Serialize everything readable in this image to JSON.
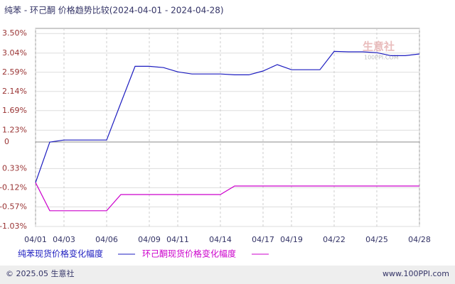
{
  "chart_data": {
    "type": "line",
    "title": "纯苯 - 环己酮 价格趋势比较(2024-04-01 - 2024-04-28)",
    "watermark": "生意社",
    "watermark_sub": "100PPI.COM",
    "zero_label": "0",
    "categories": [
      "04/01",
      null,
      "04/03",
      null,
      null,
      "04/06",
      null,
      null,
      "04/09",
      null,
      "04/11",
      null,
      null,
      "04/14",
      null,
      null,
      "04/17",
      null,
      "04/19",
      null,
      null,
      "04/22",
      null,
      null,
      "04/25",
      null,
      null,
      "04/28"
    ],
    "series": [
      {
        "name": "纯苯现货价格变化幅度",
        "color": "#1c1cc0",
        "values": [
          0,
          0.95,
          1.0,
          1.0,
          1.0,
          1.0,
          1.87,
          2.73,
          2.73,
          2.7,
          2.6,
          2.55,
          2.55,
          2.55,
          2.53,
          2.53,
          2.62,
          2.77,
          2.65,
          2.65,
          2.65,
          3.08,
          3.07,
          3.07,
          3.05,
          2.98,
          2.98,
          3.02
        ]
      },
      {
        "name": "环己酮现货价格变化幅度",
        "color": "#cc00cc",
        "values": [
          0,
          -0.66,
          -0.66,
          -0.66,
          -0.66,
          -0.66,
          -0.28,
          -0.28,
          -0.28,
          -0.28,
          -0.28,
          -0.28,
          -0.28,
          -0.28,
          -0.08,
          -0.08,
          -0.08,
          -0.08,
          -0.08,
          -0.08,
          -0.08,
          -0.08,
          -0.08,
          -0.08,
          -0.08,
          -0.08,
          -0.08,
          -0.08
        ]
      }
    ],
    "ylim": [
      -1.03,
      3.62
    ],
    "yticks": [
      {
        "value": 3.5,
        "label": "3.50%"
      },
      {
        "value": 3.04,
        "label": "3.04%"
      },
      {
        "value": 2.59,
        "label": "2.59%"
      },
      {
        "value": 2.14,
        "label": "2.14%"
      },
      {
        "value": 1.69,
        "label": "1.69%"
      },
      {
        "value": 1.23,
        "label": "1.23%"
      },
      {
        "value": 0.33,
        "label": "0.33%"
      },
      {
        "value": -0.12,
        "label": "-0.12%"
      },
      {
        "value": -0.57,
        "label": "-0.57%"
      },
      {
        "value": -1.03,
        "label": "-1.03%"
      }
    ],
    "grid": true
  },
  "footer": {
    "left": "© 2025.05 生意社",
    "right": "www.100PPI.com"
  }
}
